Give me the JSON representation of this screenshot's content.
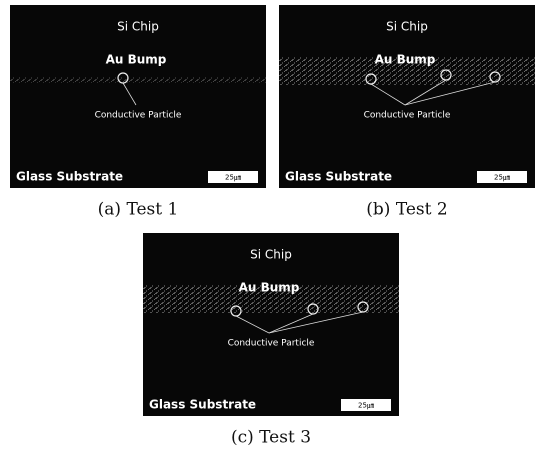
{
  "panels": [
    {
      "image": {
        "top_label": "Si Chip",
        "bump_label": "Au Bump",
        "particle_label": "Conductive Particle",
        "substrate_label": "Glass Substrate",
        "scale_label": "25㎛"
      },
      "caption": "(a) Test 1"
    },
    {
      "image": {
        "top_label": "Si Chip",
        "bump_label": "Au Bump",
        "particle_label": "Conductive Particle",
        "substrate_label": "Glass Substrate",
        "scale_label": "25㎛"
      },
      "caption": "(b) Test 2"
    },
    {
      "image": {
        "top_label": "Si Chip",
        "bump_label": "Au Bump",
        "particle_label": "Conductive Particle",
        "substrate_label": "Glass Substrate",
        "scale_label": "25㎛"
      },
      "caption": "(c) Test 3"
    }
  ]
}
